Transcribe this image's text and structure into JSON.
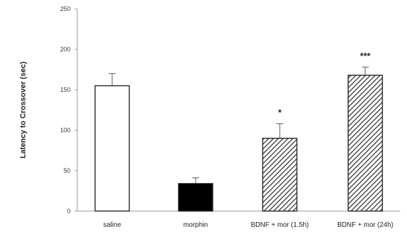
{
  "chart_data": {
    "type": "bar",
    "title": "",
    "xlabel": "",
    "ylabel": "Latency to Crossover (sec)",
    "ylim": [
      0,
      250
    ],
    "yticks": [
      0,
      50,
      100,
      150,
      200,
      250
    ],
    "grid": false,
    "legend": "none",
    "categories": [
      "saline",
      "morphin",
      "BDNF + mor (1.5h)",
      "BDNF + mor (24h)"
    ],
    "values": [
      155,
      34,
      90,
      168
    ],
    "errors": [
      15,
      7,
      18,
      10
    ],
    "significance": [
      "",
      "",
      "*",
      "***"
    ],
    "fills": [
      "white",
      "black",
      "hatched",
      "hatched"
    ],
    "colors": {
      "axis": "#999999",
      "bar_stroke": "#222222",
      "hatch": "#222222",
      "solid": "#000000"
    }
  }
}
